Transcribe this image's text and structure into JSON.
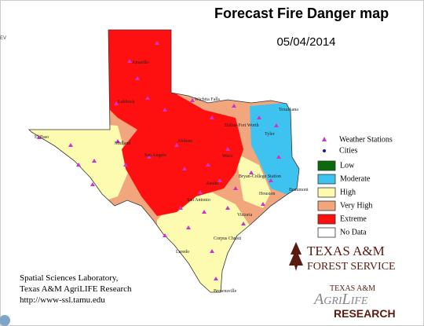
{
  "header": {
    "title": "Forecast Fire Danger map",
    "date": "05/04/2014",
    "edge_label": "EV"
  },
  "legend": {
    "symbols": [
      {
        "label": "Weather Stations",
        "color": "#cc33cc"
      },
      {
        "label": "Cities",
        "color": "#1a1aa0"
      }
    ],
    "classes": [
      {
        "label": "Low",
        "color": "#0a6b0a"
      },
      {
        "label": "Moderate",
        "color": "#3ec3f0"
      },
      {
        "label": "High",
        "color": "#fdfbb0"
      },
      {
        "label": "Very High",
        "color": "#f2a67e"
      },
      {
        "label": "Extreme",
        "color": "#ff1010"
      },
      {
        "label": "No Data",
        "color": "#ffffff"
      }
    ]
  },
  "credits": [
    "Spatial Sciences Laboratory,",
    "Texas A&M AgriLIFE Research",
    "http://www-ssl.tamu.edu"
  ],
  "logos": {
    "forest_service": {
      "line1": "TEXAS A&M",
      "line2": "FOREST SERVICE"
    },
    "agrilife": {
      "line1": "TEXAS A&M",
      "line2": "AgriLife",
      "line3": "RESEARCH"
    }
  },
  "cities": [
    {
      "name": "Amarillo"
    },
    {
      "name": "Lubbock"
    },
    {
      "name": "Wichita Falls"
    },
    {
      "name": "Texarkana"
    },
    {
      "name": "Dallas-Fort Worth"
    },
    {
      "name": "Tyler"
    },
    {
      "name": "El Paso"
    },
    {
      "name": "Midland"
    },
    {
      "name": "San Angelo"
    },
    {
      "name": "Abilene"
    },
    {
      "name": "Waco"
    },
    {
      "name": "Austin"
    },
    {
      "name": "Bryan-College Station"
    },
    {
      "name": "Houston"
    },
    {
      "name": "Beaumont"
    },
    {
      "name": "San Antonio"
    },
    {
      "name": "Victoria"
    },
    {
      "name": "Corpus Christi"
    },
    {
      "name": "Laredo"
    },
    {
      "name": "Brownsville"
    }
  ]
}
